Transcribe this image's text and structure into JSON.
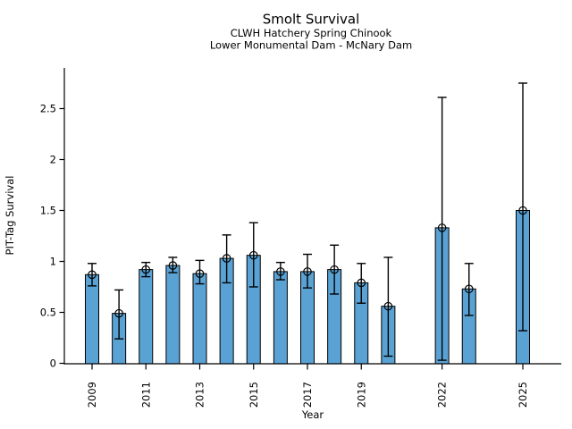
{
  "chart_data": {
    "type": "bar",
    "title": "Smolt Survival",
    "subtitle1": "CLWH Hatchery Spring Chinook",
    "subtitle2": "Lower Monumental Dam - McNary Dam",
    "xlabel": "Year",
    "ylabel": "PIT-Tag Survival",
    "ylim": [
      0,
      2.9
    ],
    "grid": false,
    "legend": "none",
    "bar_color": "#5aa2d4",
    "bar_edge_color": "#000000",
    "errorbar_color": "#000000",
    "marker": "open-circle",
    "yticks": [
      {
        "value": 0,
        "label": "0"
      },
      {
        "value": 0.5,
        "label": "0.5"
      },
      {
        "value": 1,
        "label": "1"
      },
      {
        "value": 1.5,
        "label": "1.5"
      },
      {
        "value": 2,
        "label": "2"
      },
      {
        "value": 2.5,
        "label": "2.5"
      }
    ],
    "xticks": [
      "2009",
      "2011",
      "2013",
      "2015",
      "2017",
      "2019",
      "2022",
      "2025"
    ],
    "bars": [
      {
        "year": 2009,
        "value": 0.87,
        "ci_low": 0.76,
        "ci_high": 0.98
      },
      {
        "year": 2010,
        "value": 0.49,
        "ci_low": 0.24,
        "ci_high": 0.72
      },
      {
        "year": 2011,
        "value": 0.92,
        "ci_low": 0.85,
        "ci_high": 0.99
      },
      {
        "year": 2012,
        "value": 0.96,
        "ci_low": 0.89,
        "ci_high": 1.04
      },
      {
        "year": 2013,
        "value": 0.88,
        "ci_low": 0.78,
        "ci_high": 1.01
      },
      {
        "year": 2014,
        "value": 1.03,
        "ci_low": 0.79,
        "ci_high": 1.26
      },
      {
        "year": 2015,
        "value": 1.06,
        "ci_low": 0.75,
        "ci_high": 1.38
      },
      {
        "year": 2016,
        "value": 0.9,
        "ci_low": 0.82,
        "ci_high": 0.99
      },
      {
        "year": 2017,
        "value": 0.9,
        "ci_low": 0.74,
        "ci_high": 1.07
      },
      {
        "year": 2018,
        "value": 0.92,
        "ci_low": 0.68,
        "ci_high": 1.16
      },
      {
        "year": 2019,
        "value": 0.79,
        "ci_low": 0.59,
        "ci_high": 0.98
      },
      {
        "year": 2020,
        "value": 0.56,
        "ci_low": 0.07,
        "ci_high": 1.04
      },
      {
        "year": 2022,
        "value": 1.33,
        "ci_low": 0.03,
        "ci_high": 2.61
      },
      {
        "year": 2023,
        "value": 0.73,
        "ci_low": 0.47,
        "ci_high": 0.98
      },
      {
        "year": 2025,
        "value": 1.5,
        "ci_low": 0.32,
        "ci_high": 2.75
      }
    ]
  }
}
